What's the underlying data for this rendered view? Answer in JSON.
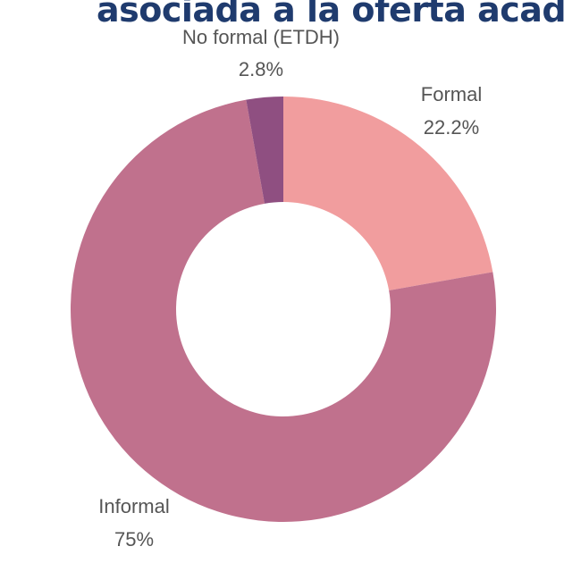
{
  "chart_data": {
    "type": "pie",
    "title": "asociada a la oferta académ",
    "title_color": "#1f3b6e",
    "categories": [
      "Formal",
      "Informal",
      "No formal (ETDH)"
    ],
    "values": [
      22.2,
      75,
      2.8
    ],
    "value_labels": [
      "22.2%",
      "75%",
      "2.8%"
    ],
    "colors": [
      "#f19d9e",
      "#c0718d",
      "#8f4f81"
    ],
    "donut": true,
    "legend": "none"
  }
}
